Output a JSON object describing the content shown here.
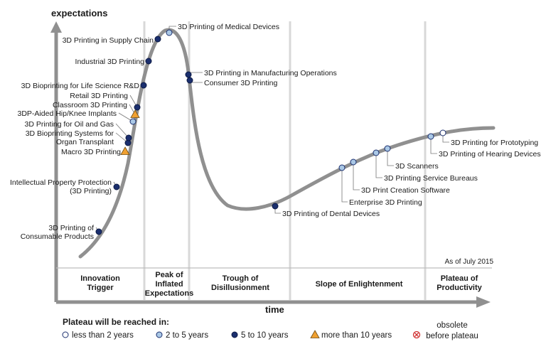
{
  "chart_data": {
    "type": "hype-cycle",
    "y_axis_label": "expectations",
    "x_axis_label": "time",
    "as_of": "As of July 2015",
    "phases": [
      {
        "name": "Innovation Trigger",
        "lines": [
          "Innovation",
          "Trigger"
        ]
      },
      {
        "name": "Peak of Inflated Expectations",
        "lines": [
          "Peak of",
          "Inflated",
          "Expectations"
        ]
      },
      {
        "name": "Trough of Disillusionment",
        "lines": [
          "Trough of",
          "Disillusionment"
        ]
      },
      {
        "name": "Slope of Enlightenment",
        "lines": [
          "Slope of Enlightenment"
        ]
      },
      {
        "name": "Plateau of Productivity",
        "lines": [
          "Plateau of",
          "Productivity"
        ]
      }
    ],
    "technologies": [
      {
        "lines": [
          "3D Printing of",
          "Consumable Products"
        ],
        "category": "5to10",
        "phase": "Innovation Trigger"
      },
      {
        "lines": [
          "Intellectual Property Protection",
          "(3D Printing)"
        ],
        "category": "5to10",
        "phase": "Innovation Trigger"
      },
      {
        "lines": [
          "Macro 3D Printing"
        ],
        "category": "more10",
        "phase": "Innovation Trigger"
      },
      {
        "lines": [
          "3D Bioprinting Systems for",
          "Organ Transplant"
        ],
        "category": "5to10",
        "phase": "Innovation Trigger"
      },
      {
        "lines": [
          "3D Printing for Oil and Gas"
        ],
        "category": "5to10",
        "phase": "Innovation Trigger"
      },
      {
        "lines": [
          "3DP-Aided Hip/Knee Implants"
        ],
        "category": "2to5",
        "phase": "Innovation Trigger"
      },
      {
        "lines": [
          "Classroom 3D Printing"
        ],
        "category": "more10",
        "phase": "Innovation Trigger"
      },
      {
        "lines": [
          "Retail 3D Printing"
        ],
        "category": "5to10",
        "phase": "Innovation Trigger"
      },
      {
        "lines": [
          "3D Bioprinting for Life Science R&D"
        ],
        "category": "5to10",
        "phase": "Innovation Trigger"
      },
      {
        "lines": [
          "Industrial 3D Printing"
        ],
        "category": "5to10",
        "phase": "Peak of Inflated Expectations"
      },
      {
        "lines": [
          "3D Printing in Supply Chain"
        ],
        "category": "5to10",
        "phase": "Peak of Inflated Expectations"
      },
      {
        "lines": [
          "3D Printing of Medical Devices"
        ],
        "category": "2to5",
        "phase": "Peak of Inflated Expectations"
      },
      {
        "lines": [
          "3D Printing in Manufacturing Operations"
        ],
        "category": "5to10",
        "phase": "Trough of Disillusionment"
      },
      {
        "lines": [
          "Consumer 3D Printing"
        ],
        "category": "5to10",
        "phase": "Trough of Disillusionment"
      },
      {
        "lines": [
          "3D Printing of Dental Devices"
        ],
        "category": "5to10",
        "phase": "Trough of Disillusionment"
      },
      {
        "lines": [
          "Enterprise 3D Printing"
        ],
        "category": "2to5",
        "phase": "Slope of Enlightenment"
      },
      {
        "lines": [
          "3D Print Creation Software"
        ],
        "category": "2to5",
        "phase": "Slope of Enlightenment"
      },
      {
        "lines": [
          "3D Printing Service Bureaus"
        ],
        "category": "2to5",
        "phase": "Slope of Enlightenment"
      },
      {
        "lines": [
          "3D Scanners"
        ],
        "category": "2to5",
        "phase": "Slope of Enlightenment"
      },
      {
        "lines": [
          "3D Printing of Hearing Devices"
        ],
        "category": "2to5",
        "phase": "Plateau of Productivity"
      },
      {
        "lines": [
          "3D Printing for Prototyping"
        ],
        "category": "less2",
        "phase": "Plateau of Productivity"
      }
    ],
    "legend": {
      "title": "Plateau will be reached in:",
      "items": [
        {
          "key": "less2",
          "label": "less than 2 years"
        },
        {
          "key": "2to5",
          "label": "2 to 5 years"
        },
        {
          "key": "5to10",
          "label": "5 to 10 years"
        },
        {
          "key": "more10",
          "label": "more than 10 years"
        },
        {
          "key": "obsolete",
          "lines": [
            "obsolete",
            "before plateau"
          ]
        }
      ]
    },
    "colors": {
      "less2": "#ffffff",
      "2to5": "#aac8e6",
      "5to10": "#1b2f6e",
      "more10": "#f0a030",
      "obsolete": "#d03030",
      "curve": "#909090",
      "axis": "#909090",
      "divider": "#d8d8d8"
    }
  }
}
